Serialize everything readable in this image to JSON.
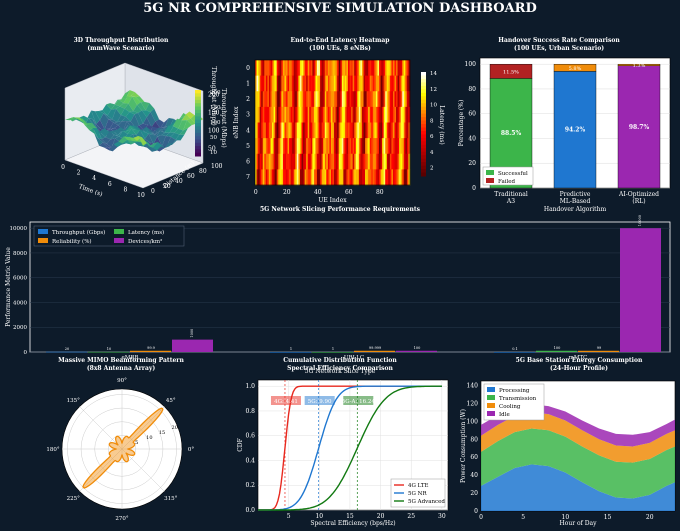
{
  "dashboard": {
    "title": "5G NR COMPREHENSIVE SIMULATION DASHBOARD"
  },
  "colors": {
    "bg": "#0d1b2a",
    "panel": "#ffffff",
    "text": "#ffffff",
    "axis": "#000000",
    "blue": "#1f77d0",
    "green": "#3cb54a",
    "orange": "#f08c0a",
    "purple": "#9b27b0",
    "red": "#e8281e",
    "darkred": "#b22222",
    "darkgreen": "#127a12"
  },
  "chart_data": [
    {
      "type": "surface3d",
      "title": "3D Throughput Distribution",
      "subtitle": "(mmWave Scenario)",
      "xlabel": "Time (s)",
      "ylabel": "Distance (m)",
      "zlabel": "Throughput (Mbps)",
      "colorbar_label": "Throughput (Mbps)",
      "xticks": [
        "0",
        "2",
        "4",
        "6",
        "8",
        "10"
      ],
      "yticks": [
        "0",
        "20",
        "40",
        "60",
        "80",
        "100"
      ],
      "zticks": [
        "50",
        "100",
        "150",
        "200"
      ],
      "colorbar_ticks": [
        "200",
        "150",
        "100",
        "50",
        "10"
      ]
    },
    {
      "type": "heatmap",
      "title": "End-to-End Latency Heatmap",
      "subtitle": "(100 UEs, 8 eNBs)",
      "xlabel": "UE Index",
      "ylabel": "eNB Index",
      "colorbar_label": "Latency (ms)",
      "xticks": [
        "0",
        "20",
        "40",
        "60",
        "80"
      ],
      "yticks": [
        "0",
        "1",
        "2",
        "3",
        "4",
        "5",
        "6",
        "7"
      ],
      "colorbar_ticks": [
        "14",
        "12",
        "10",
        "8",
        "6",
        "4",
        "2"
      ],
      "value_range": [
        1,
        15
      ],
      "rows": 8,
      "cols": 100
    },
    {
      "type": "bar",
      "stacked": true,
      "title": "Handover Success Rate Comparison",
      "subtitle": "(100 UEs, Urban Scenario)",
      "xlabel": "Handover Algorithm",
      "ylabel": "Percentage (%)",
      "categories": [
        "Traditional\nA3",
        "Predictive\nML-Based",
        "AI-Optimized\n(RL)"
      ],
      "series": [
        {
          "name": "Successful",
          "values": [
            88.5,
            94.2,
            98.7
          ],
          "labels": [
            "88.5%",
            "94.2%",
            "98.7%"
          ]
        },
        {
          "name": "Failed",
          "values": [
            11.5,
            5.8,
            1.3
          ],
          "labels": [
            "11.5%",
            "5.8%",
            "1.3%"
          ]
        }
      ],
      "ylim": [
        0,
        105
      ],
      "yticks": [
        "0",
        "20",
        "40",
        "60",
        "80",
        "100"
      ],
      "legend": "lower-left"
    },
    {
      "type": "bar",
      "title": "5G Network Slicing Performance Requirements",
      "xlabel": "5G Network Slice Type",
      "ylabel": "Performance Metric Value",
      "categories": [
        "eMBB",
        "URLLC",
        "mMTC"
      ],
      "series": [
        {
          "name": "Throughput (Gbps)",
          "values": [
            20,
            1,
            0.1
          ],
          "labels": [
            "20",
            "1",
            "0.1"
          ]
        },
        {
          "name": "Latency (ms)",
          "values": [
            10,
            1,
            100
          ],
          "labels": [
            "10",
            "1",
            "100"
          ]
        },
        {
          "name": "Reliability (%)",
          "values": [
            99.9,
            99.999,
            99
          ],
          "labels": [
            "99.9",
            "99.999",
            "99"
          ]
        },
        {
          "name": "Devices/km²",
          "values": [
            1000,
            100,
            10000
          ],
          "labels": [
            "1000",
            "100",
            "10000"
          ]
        }
      ],
      "ylim": [
        0,
        10500
      ],
      "yticks": [
        "0",
        "2000",
        "4000",
        "6000",
        "8000",
        "10000"
      ],
      "legend": "upper-left"
    },
    {
      "type": "polar",
      "title": "Massive MIMO Beamforming Pattern",
      "subtitle": "(8x8 Antenna Array)",
      "angle_labels": [
        "0°",
        "45°",
        "90°",
        "135°",
        "180°",
        "225°",
        "270°",
        "315°"
      ],
      "radial_ticks": [
        "5",
        "10",
        "15",
        "20"
      ],
      "rmax": 22
    },
    {
      "type": "line",
      "title": "Cumulative Distribution Function",
      "subtitle": "Spectral Efficiency Comparison",
      "xlabel": "Spectral Efficiency (bps/Hz)",
      "ylabel": "CDF",
      "xlim": [
        0,
        31
      ],
      "ylim": [
        0,
        1.05
      ],
      "xticks": [
        "5",
        "10",
        "15",
        "20",
        "25",
        "30"
      ],
      "yticks": [
        "0.0",
        "0.2",
        "0.4",
        "0.6",
        "0.8",
        "1.0"
      ],
      "series": [
        {
          "name": "4G LTE",
          "mean": 4.4,
          "sd": 0.8
        },
        {
          "name": "5G NR",
          "mean": 9.9,
          "sd": 2.3
        },
        {
          "name": "5G Advanced",
          "mean": 16.2,
          "sd": 3.6
        }
      ],
      "annotations": [
        "4G: 4.41",
        "5G: 9.90",
        "5G-A: 16.24"
      ],
      "legend": "lower-right"
    },
    {
      "type": "area",
      "stacked": true,
      "title": "5G Base Station Energy Consumption",
      "subtitle": "(24-Hour Profile)",
      "xlabel": "Hour of Day",
      "ylabel": "Power Consumption (W)",
      "x": [
        0,
        2,
        4,
        6,
        8,
        10,
        12,
        14,
        16,
        18,
        20,
        22,
        23
      ],
      "series": [
        {
          "name": "Processing",
          "values": [
            28,
            38,
            48,
            52,
            50,
            43,
            32,
            22,
            15,
            14,
            18,
            28,
            32
          ]
        },
        {
          "name": "Transmission",
          "values": [
            38,
            40,
            40,
            40,
            40,
            40,
            40,
            40,
            40,
            40,
            40,
            40,
            40
          ]
        },
        {
          "name": "Cooling",
          "values": [
            18,
            18,
            18,
            18,
            18,
            18,
            18,
            18,
            18,
            18,
            18,
            18,
            18
          ]
        },
        {
          "name": "Idle",
          "values": [
            12,
            11,
            10,
            9,
            9,
            10,
            11,
            12,
            13,
            13,
            12,
            11,
            12
          ]
        }
      ],
      "xlim": [
        0,
        23
      ],
      "ylim": [
        0,
        145
      ],
      "xticks": [
        "0",
        "5",
        "10",
        "15",
        "20"
      ],
      "yticks": [
        "0",
        "20",
        "40",
        "60",
        "80",
        "100",
        "120",
        "140"
      ],
      "legend": "upper-left"
    }
  ]
}
